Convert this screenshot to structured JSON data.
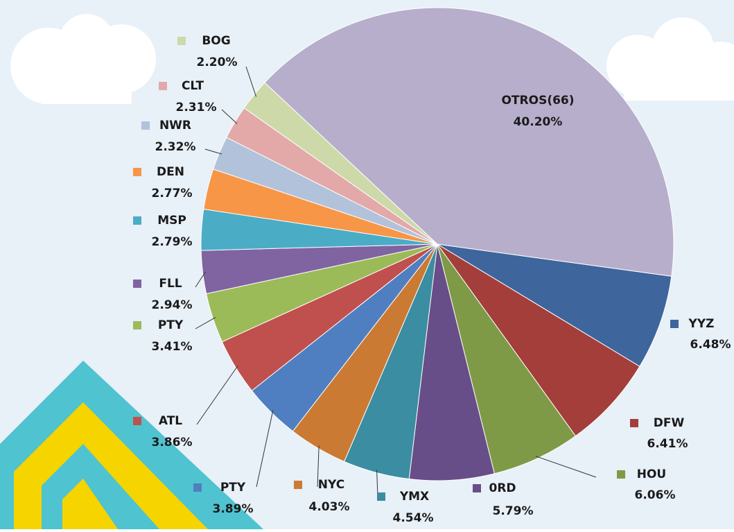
{
  "chart_data": {
    "type": "pie",
    "categories": [
      "YYZ",
      "DFW",
      "HOU",
      "0RD",
      "YMX",
      "NYC",
      "PTY",
      "ATL",
      "PTY",
      "FLL",
      "MSP",
      "DEN",
      "NWR",
      "CLT",
      "BOG",
      "OTROS(66)"
    ],
    "values": [
      6.48,
      6.41,
      6.06,
      5.79,
      4.54,
      4.03,
      3.89,
      3.86,
      3.41,
      2.94,
      2.79,
      2.77,
      2.32,
      2.31,
      2.2,
      40.2
    ],
    "value_labels": [
      "6.48%",
      "6.41%",
      "6.06%",
      "5.79%",
      "4.54%",
      "4.03%",
      "3.89%",
      "3.86%",
      "3.41%",
      "2.94%",
      "2.79%",
      "2.77%",
      "2.32%",
      "2.31%",
      "2.20%",
      "40.20%"
    ],
    "colors": [
      "#3e659c",
      "#a33e3b",
      "#7f9a47",
      "#684e88",
      "#3b8da1",
      "#cb7a34",
      "#4f7fc0",
      "#c0504d",
      "#9bbb59",
      "#8064a2",
      "#4bacc6",
      "#f79646",
      "#b3c2db",
      "#e2a9a8",
      "#cdd9a8",
      "#b7aecb"
    ]
  }
}
